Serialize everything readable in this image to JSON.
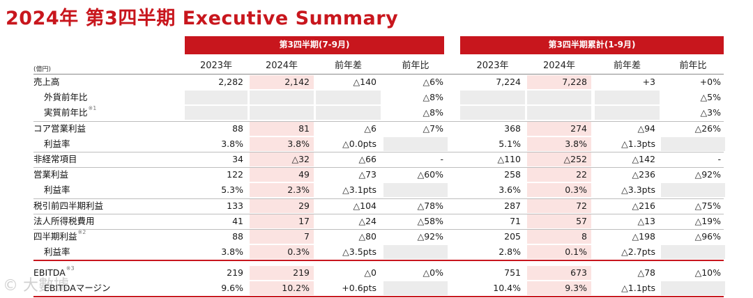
{
  "title": "2024年 第3四半期 Executive Summary",
  "unit": "(億円)",
  "groups": [
    {
      "label": "第3四半期(7-9月)"
    },
    {
      "label": "第3四半期累計(1-9月)"
    }
  ],
  "columns": [
    "2023年",
    "2024年",
    "前年差",
    "前年比",
    "2023年",
    "2024年",
    "前年差",
    "前年比"
  ],
  "rows": [
    {
      "label": "売上高",
      "note": "",
      "indent": false,
      "vals": [
        "2,282",
        "2,142",
        "△140",
        "△6%",
        "7,224",
        "7,228",
        "+3",
        "+0%"
      ],
      "grey": []
    },
    {
      "label": "外貨前年比",
      "note": "",
      "indent": true,
      "vals": [
        "",
        "",
        "",
        "△8%",
        "",
        "",
        "",
        "△5%"
      ],
      "grey": [
        0,
        1,
        2,
        4,
        5,
        6
      ]
    },
    {
      "label": "実質前年比",
      "note": "※1",
      "indent": true,
      "vals": [
        "",
        "",
        "",
        "△8%",
        "",
        "",
        "",
        "△3%"
      ],
      "grey": [
        0,
        1,
        2,
        4,
        5,
        6
      ]
    },
    {
      "label": "コア営業利益",
      "note": "",
      "indent": false,
      "vals": [
        "88",
        "81",
        "△6",
        "△7%",
        "368",
        "274",
        "△94",
        "△26%"
      ],
      "grey": []
    },
    {
      "label": "利益率",
      "note": "",
      "indent": true,
      "vals": [
        "3.8%",
        "3.8%",
        "△0.0pts",
        "",
        "5.1%",
        "3.8%",
        "△1.3pts",
        ""
      ],
      "grey": [
        3,
        7
      ]
    },
    {
      "label": "非経常項目",
      "note": "",
      "indent": false,
      "vals": [
        "34",
        "△32",
        "△66",
        "-",
        "△110",
        "△252",
        "△142",
        "-"
      ],
      "grey": []
    },
    {
      "label": "営業利益",
      "note": "",
      "indent": false,
      "vals": [
        "122",
        "49",
        "△73",
        "△60%",
        "258",
        "22",
        "△236",
        "△92%"
      ],
      "grey": []
    },
    {
      "label": "利益率",
      "note": "",
      "indent": true,
      "vals": [
        "5.3%",
        "2.3%",
        "△3.1pts",
        "",
        "3.6%",
        "0.3%",
        "△3.3pts",
        ""
      ],
      "grey": [
        3,
        7
      ]
    },
    {
      "label": "税引前四半期利益",
      "note": "",
      "indent": false,
      "vals": [
        "133",
        "29",
        "△104",
        "△78%",
        "287",
        "72",
        "△216",
        "△75%"
      ],
      "grey": []
    },
    {
      "label": "法人所得税費用",
      "note": "",
      "indent": false,
      "vals": [
        "41",
        "17",
        "△24",
        "△58%",
        "71",
        "57",
        "△13",
        "△19%"
      ],
      "grey": []
    },
    {
      "label": "四半期利益",
      "note": "※2",
      "indent": false,
      "vals": [
        "88",
        "7",
        "△80",
        "△92%",
        "205",
        "8",
        "△198",
        "△96%"
      ],
      "grey": []
    },
    {
      "label": "利益率",
      "note": "",
      "indent": true,
      "vals": [
        "3.8%",
        "0.3%",
        "△3.5pts",
        "",
        "2.8%",
        "0.1%",
        "△2.7pts",
        ""
      ],
      "grey": [
        3,
        7
      ]
    }
  ],
  "ebitda_rows": [
    {
      "label": "EBITDA",
      "note": "※3",
      "indent": false,
      "vals": [
        "219",
        "219",
        "△0",
        "△0%",
        "751",
        "673",
        "△78",
        "△10%"
      ],
      "grey": []
    },
    {
      "label": "EBITDAマージン",
      "note": "",
      "indent": true,
      "vals": [
        "9.6%",
        "10.2%",
        "+0.6pts",
        "",
        "10.4%",
        "9.3%",
        "△1.1pts",
        ""
      ],
      "grey": [
        3,
        7
      ]
    }
  ],
  "colors": {
    "accent": "#c8161d",
    "highlight": "#fbe3e1",
    "grey": "#ececec"
  }
}
